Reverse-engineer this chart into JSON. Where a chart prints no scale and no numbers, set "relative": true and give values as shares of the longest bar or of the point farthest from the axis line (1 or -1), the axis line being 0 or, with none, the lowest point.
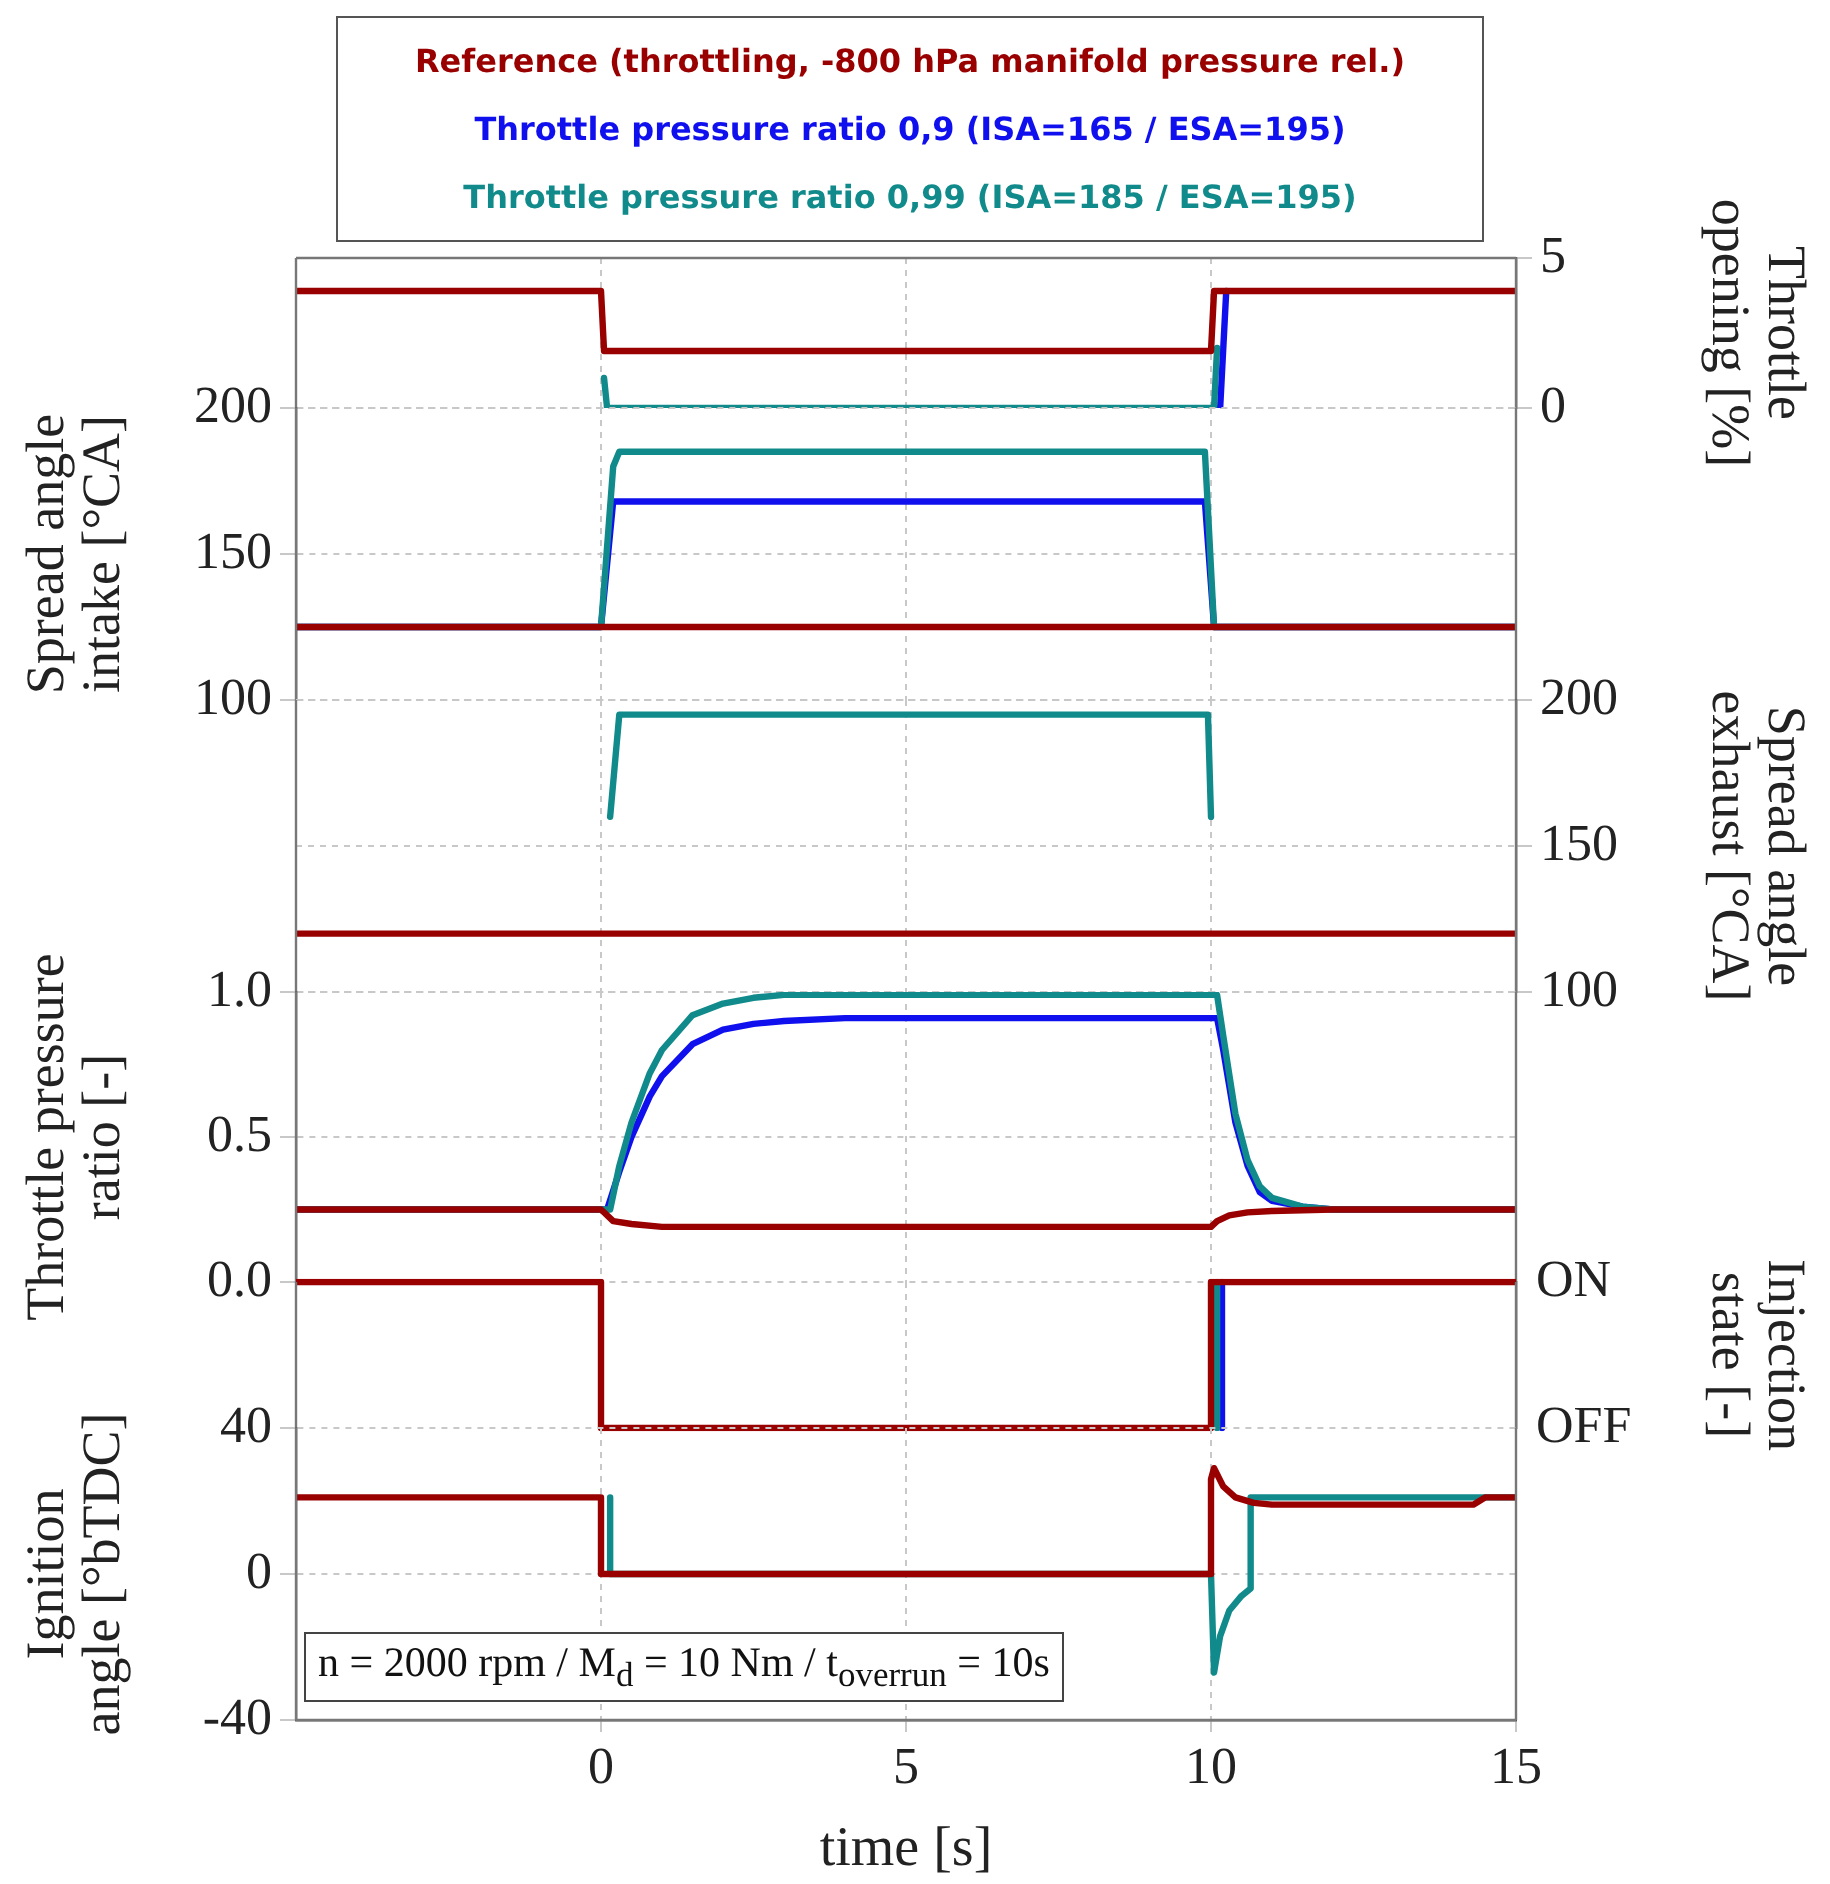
{
  "chart_data": [
    {
      "type": "line",
      "y2label": "Throttle opening [%]",
      "xlim": [
        -5,
        15
      ],
      "xticks": [
        0,
        5,
        10,
        15
      ],
      "y2lim": [
        0,
        5
      ],
      "y2ticks": [
        0,
        5
      ],
      "tick_labels": "y",
      "grid": true,
      "marker": "none",
      "legend": "top",
      "series": [
        {
          "name": "Reference (throttling, -800 hPa manifold pressure rel.)",
          "color": "#990000",
          "axis": "y2",
          "x": [
            -5,
            0,
            0.05,
            10,
            10.05,
            15
          ],
          "values": [
            3.9,
            3.9,
            1.9,
            1.9,
            3.9,
            3.9
          ]
        },
        {
          "name": "Throttle pressure ratio 0,9 (ISA=165 / ESA=195)",
          "color": "#1010ee",
          "axis": "y2",
          "x": [
            10.15,
            10.25
          ],
          "values": [
            0,
            3.9
          ]
        },
        {
          "name": "Throttle pressure ratio 0,99 (ISA=185 / ESA=195)",
          "color": "#108a8a",
          "axis": "y2",
          "x": [
            0.05,
            0.1,
            10.05,
            10.1
          ],
          "values": [
            1,
            0,
            0,
            2
          ]
        }
      ]
    },
    {
      "type": "line",
      "ylabel": "Spread angle intake [°CA]",
      "xlim": [
        -5,
        15
      ],
      "xticks": [
        0,
        5,
        10,
        15
      ],
      "ylim": [
        100,
        200
      ],
      "yticks": [
        100,
        150,
        200
      ],
      "tick_labels": "y",
      "grid": true,
      "marker": "none",
      "series": [
        {
          "color": "#990000",
          "x": [
            -5,
            15
          ],
          "values": [
            125,
            125
          ]
        },
        {
          "color": "#1010ee",
          "x": [
            -5,
            0,
            0.2,
            9.9,
            10.05,
            15
          ],
          "values": [
            125,
            125,
            168,
            168,
            125,
            125
          ]
        },
        {
          "color": "#108a8a",
          "x": [
            -5,
            0,
            0.2,
            0.3,
            9.9,
            10.05,
            15
          ],
          "values": [
            125,
            125,
            180,
            185,
            185,
            125,
            125
          ]
        }
      ]
    },
    {
      "type": "line",
      "y2label": "Spread angle exhaust [°CA]",
      "xlim": [
        -5,
        15
      ],
      "xticks": [
        0,
        5,
        10,
        15
      ],
      "y2lim": [
        100,
        200
      ],
      "y2ticks": [
        100,
        150,
        200
      ],
      "tick_labels": "y",
      "grid": true,
      "marker": "none",
      "series": [
        {
          "color": "#990000",
          "axis": "y2",
          "x": [
            -5,
            15
          ],
          "values": [
            120,
            120
          ]
        },
        {
          "color": "#108a8a",
          "axis": "y2",
          "x": [
            0.15,
            0.3,
            9.95,
            10
          ],
          "values": [
            160,
            195,
            195,
            160
          ]
        }
      ]
    },
    {
      "type": "line",
      "ylabel": "Throttle pressure ratio [-]",
      "xlim": [
        -5,
        15
      ],
      "xticks": [
        0,
        5,
        10,
        15
      ],
      "ylim": [
        0,
        1
      ],
      "yticks": [
        {
          "value": 0,
          "label": "0.0"
        },
        {
          "value": 0.5,
          "label": "0.5"
        },
        {
          "value": 1,
          "label": "1.0"
        }
      ],
      "tick_labels": "y",
      "grid": true,
      "marker": "none",
      "series": [
        {
          "color": "#990000",
          "x": [
            -5,
            0,
            0.2,
            0.5,
            1,
            3,
            10,
            10.1,
            10.3,
            10.6,
            11,
            12,
            15
          ],
          "values": [
            0.25,
            0.25,
            0.21,
            0.2,
            0.19,
            0.19,
            0.19,
            0.21,
            0.23,
            0.24,
            0.245,
            0.25,
            0.25
          ]
        },
        {
          "color": "#1010ee",
          "x": [
            -5,
            0.1,
            0.3,
            0.5,
            0.8,
            1,
            1.5,
            2,
            2.5,
            3,
            4,
            10.1,
            10.2,
            10.4,
            10.6,
            10.8,
            11,
            11.5,
            12,
            15
          ],
          "values": [
            0.25,
            0.25,
            0.38,
            0.5,
            0.64,
            0.71,
            0.82,
            0.87,
            0.89,
            0.9,
            0.91,
            0.91,
            0.8,
            0.55,
            0.4,
            0.31,
            0.28,
            0.26,
            0.25,
            0.25
          ]
        },
        {
          "color": "#108a8a",
          "x": [
            -5,
            0.15,
            0.3,
            0.5,
            0.8,
            1,
            1.5,
            2,
            2.5,
            3,
            4,
            10.1,
            10.2,
            10.4,
            10.6,
            10.8,
            11,
            11.5,
            12,
            15
          ],
          "values": [
            0.25,
            0.25,
            0.4,
            0.55,
            0.72,
            0.8,
            0.92,
            0.96,
            0.98,
            0.99,
            0.99,
            0.99,
            0.85,
            0.58,
            0.42,
            0.33,
            0.29,
            0.26,
            0.25,
            0.25
          ]
        }
      ]
    },
    {
      "type": "line",
      "y2label": "Injection state [-]",
      "xlim": [
        -5,
        15
      ],
      "xticks": [
        0,
        5,
        10,
        15
      ],
      "relative": true,
      "tick_labels": "y",
      "grid": true,
      "marker": "none",
      "annotations": [
        "ON",
        "OFF"
      ],
      "series": [
        {
          "color": "#990000",
          "axis": "y2",
          "x": [
            -5,
            0,
            0,
            10,
            10,
            15
          ],
          "values": [
            1,
            1,
            0,
            0,
            1,
            1
          ]
        },
        {
          "color": "#1010ee",
          "axis": "y2",
          "x": [
            10.18,
            10.18
          ],
          "values": [
            0,
            1
          ]
        },
        {
          "color": "#108a8a",
          "axis": "y2",
          "x": [
            10.1,
            10.1
          ],
          "values": [
            0,
            1
          ]
        }
      ]
    },
    {
      "type": "line",
      "ylabel": "Ignition angle [°bTDC]",
      "xlabel": "time [s]",
      "xlim": [
        -5,
        15
      ],
      "xticks": [
        0,
        5,
        10,
        15
      ],
      "ylim": [
        -40,
        40
      ],
      "yticks": [
        -40,
        0,
        40
      ],
      "grid": true,
      "marker": "none",
      "annotations": [
        "n = 2000 rpm / M$_{d}$ = 10 Nm / t$_{overrun}$ = 10s"
      ],
      "series": [
        {
          "color": "#990000",
          "x": [
            -5,
            0,
            0,
            10,
            10,
            10.05,
            10.2,
            10.4,
            10.7,
            11,
            12,
            14.3,
            14.5,
            15
          ],
          "values": [
            21,
            21,
            0,
            0,
            26,
            29,
            24,
            21,
            19.5,
            19,
            19,
            19,
            21,
            21
          ]
        },
        {
          "color": "#108a8a",
          "x": [
            0.15,
            0.15,
            10,
            10.05,
            10.15,
            10.3,
            10.5,
            10.65,
            10.65,
            15
          ],
          "values": [
            21,
            0,
            0,
            -27,
            -17,
            -10,
            -6,
            -4,
            21,
            21
          ]
        }
      ]
    }
  ]
}
